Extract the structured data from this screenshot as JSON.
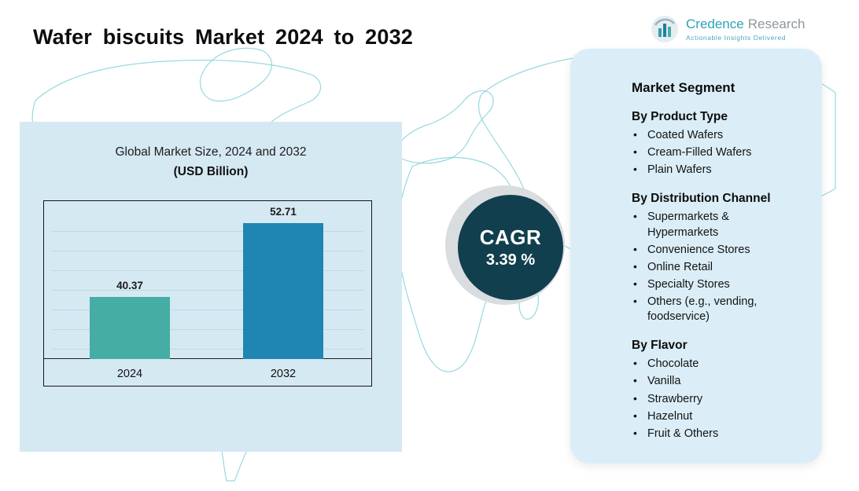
{
  "title": "Wafer biscuits Market 2024 to 2032",
  "logo": {
    "brand_primary": "Credence",
    "brand_secondary": "Research",
    "tagline": "Actionable Insights Delivered"
  },
  "chart_panel": {
    "title_line1": "Global Market Size, 2024 and 2032",
    "title_line2": "(USD Billion)"
  },
  "chart_data": {
    "type": "bar",
    "title": "Global Market Size, 2024 and 2032 (USD Billion)",
    "categories": [
      "2024",
      "2032"
    ],
    "values": [
      40.37,
      52.71
    ],
    "value_labels": [
      "40.37",
      "52.71"
    ],
    "bar_colors": [
      "#46ada4",
      "#1f86b4"
    ],
    "ylabel": "USD Billion",
    "ylim": [
      30,
      55
    ],
    "grid": true,
    "legend": false
  },
  "cagr": {
    "label": "CAGR",
    "value": "3.39 %",
    "circle_color": "#113f4e"
  },
  "segments": {
    "heading": "Market Segment",
    "groups": [
      {
        "heading": "By Product Type",
        "items": [
          "Coated Wafers",
          "Cream-Filled Wafers",
          "Plain Wafers"
        ]
      },
      {
        "heading": "By Distribution Channel",
        "items": [
          "Supermarkets & Hypermarkets",
          "Convenience Stores",
          "Online Retail",
          "Specialty Stores",
          "Others (e.g., vending, foodservice)"
        ]
      },
      {
        "heading": "By Flavor",
        "items": [
          "Chocolate",
          "Vanilla",
          "Strawberry",
          "Hazelnut",
          "Fruit & Others"
        ]
      }
    ]
  }
}
